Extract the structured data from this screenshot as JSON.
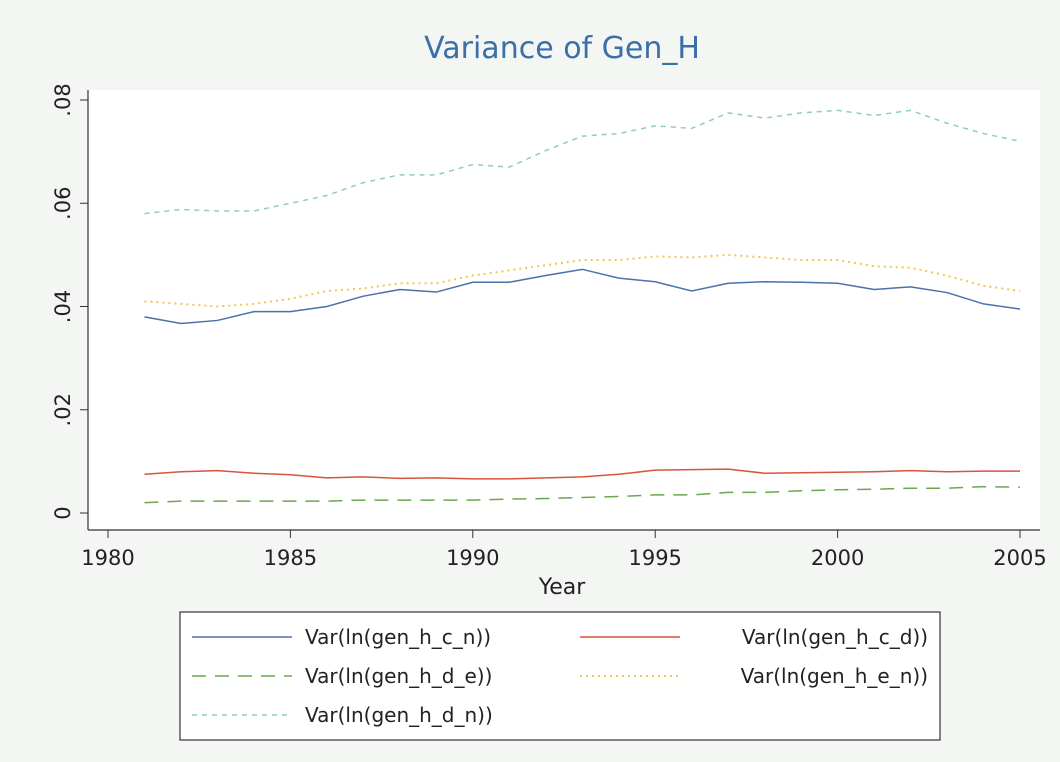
{
  "chart_data": {
    "type": "line",
    "title": "Variance of Gen_H",
    "xlabel": "Year",
    "x": [
      1981,
      1982,
      1983,
      1984,
      1985,
      1986,
      1987,
      1988,
      1989,
      1990,
      1991,
      1992,
      1993,
      1994,
      1995,
      1996,
      1997,
      1998,
      1999,
      2000,
      2001,
      2002,
      2003,
      2004,
      2005
    ],
    "series": [
      {
        "name": "Var(ln(gen_h_c_n))",
        "color": "#4a72a8",
        "dash": "solid",
        "values": [
          0.038,
          0.0367,
          0.0373,
          0.039,
          0.039,
          0.04,
          0.042,
          0.0433,
          0.0428,
          0.0447,
          0.0447,
          0.046,
          0.0472,
          0.0455,
          0.0448,
          0.043,
          0.0445,
          0.0448,
          0.0447,
          0.0445,
          0.0433,
          0.0438,
          0.0427,
          0.0405,
          0.0395
        ]
      },
      {
        "name": "Var(ln(gen_h_c_d))",
        "color": "#d9553a",
        "dash": "solid",
        "values": [
          0.0075,
          0.008,
          0.0082,
          0.0077,
          0.0074,
          0.0068,
          0.007,
          0.0067,
          0.0068,
          0.0066,
          0.0066,
          0.0068,
          0.007,
          0.0075,
          0.0083,
          0.0084,
          0.0085,
          0.0077,
          0.0078,
          0.0079,
          0.008,
          0.0082,
          0.008,
          0.0081,
          0.0081
        ]
      },
      {
        "name": "Var(ln(gen_h_d_e))",
        "color": "#6aa84f",
        "dash": "long-dash",
        "values": [
          0.002,
          0.0023,
          0.0023,
          0.0023,
          0.0023,
          0.0023,
          0.0025,
          0.0025,
          0.0025,
          0.0025,
          0.0027,
          0.0028,
          0.003,
          0.0032,
          0.0035,
          0.0035,
          0.004,
          0.004,
          0.0043,
          0.0045,
          0.0046,
          0.0048,
          0.0048,
          0.0051,
          0.005
        ]
      },
      {
        "name": "Var(ln(gen_h_e_n))",
        "color": "#eec94a",
        "dash": "dot",
        "values": [
          0.041,
          0.0405,
          0.04,
          0.0405,
          0.0415,
          0.043,
          0.0435,
          0.0445,
          0.0445,
          0.046,
          0.047,
          0.048,
          0.049,
          0.049,
          0.0497,
          0.0495,
          0.05,
          0.0495,
          0.049,
          0.049,
          0.0478,
          0.0475,
          0.046,
          0.044,
          0.043
        ]
      },
      {
        "name": "Var(ln(gen_h_d_n))",
        "color": "#8fcdb9",
        "dash": "short-dash",
        "values": [
          0.058,
          0.0588,
          0.0585,
          0.0585,
          0.06,
          0.0615,
          0.064,
          0.0655,
          0.0655,
          0.0675,
          0.067,
          0.0702,
          0.073,
          0.0735,
          0.075,
          0.0745,
          0.0775,
          0.0765,
          0.0775,
          0.078,
          0.077,
          0.078,
          0.0755,
          0.0735,
          0.072
        ]
      }
    ],
    "xlim": [
      1980,
      2005
    ],
    "xticks": [
      1980,
      1985,
      1990,
      1995,
      2000,
      2005
    ],
    "ylim": [
      0,
      0.08
    ],
    "yticks": [
      0,
      {
        "value": 0.02,
        "label": ".02"
      },
      {
        "value": 0.04,
        "label": ".04"
      },
      {
        "value": 0.06,
        "label": ".06"
      },
      {
        "value": 0.08,
        "label": ".08"
      }
    ],
    "legend": "bottom"
  }
}
